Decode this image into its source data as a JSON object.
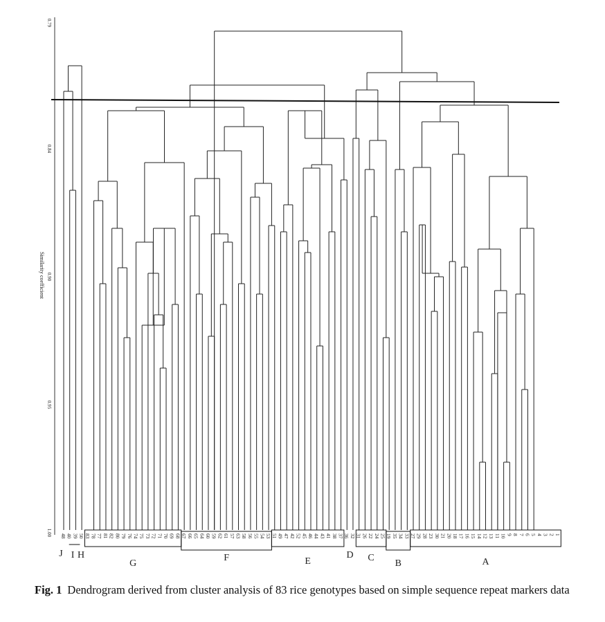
{
  "figure": {
    "label": "Fig. 1",
    "caption": "Dendrogram derived from cluster analysis of 83 rice genotypes based on simple sequence repeat markers data"
  },
  "axis": {
    "title": "Similarity coefficient",
    "ticks": [
      "0.79",
      "0.84",
      "0.90",
      "0.95",
      "1.00"
    ]
  },
  "leaves": [
    "48",
    "40",
    "39",
    "50",
    "83",
    "78",
    "77",
    "81",
    "82",
    "80",
    "79",
    "76",
    "74",
    "75",
    "73",
    "72",
    "71",
    "70",
    "69",
    "68",
    "67",
    "66",
    "65",
    "64",
    "60",
    "59",
    "62",
    "61",
    "57",
    "63",
    "58",
    "56",
    "55",
    "54",
    "53",
    "51",
    "49",
    "47",
    "42",
    "52",
    "45",
    "46",
    "44",
    "43",
    "41",
    "38",
    "37",
    "36",
    "32",
    "31",
    "26",
    "22",
    "24",
    "25",
    "19",
    "35",
    "34",
    "33",
    "27",
    "29",
    "28",
    "23",
    "30",
    "21",
    "20",
    "18",
    "17",
    "16",
    "15",
    "14",
    "12",
    "13",
    "11",
    "10",
    "9",
    "8",
    "7",
    "6",
    "5",
    "4",
    "3",
    "2",
    "1"
  ],
  "clusters": [
    {
      "name": "J",
      "leaves": [
        "48"
      ]
    },
    {
      "name": "I",
      "leaves": [
        "40",
        "39"
      ]
    },
    {
      "name": "H",
      "leaves": [
        "50"
      ]
    },
    {
      "name": "G",
      "leaves": [
        "83",
        "78",
        "77",
        "81",
        "82",
        "80",
        "79",
        "76",
        "74",
        "75",
        "73",
        "72",
        "71",
        "70",
        "69",
        "68"
      ]
    },
    {
      "name": "F",
      "leaves": [
        "67",
        "66",
        "65",
        "64",
        "60",
        "59",
        "62",
        "61",
        "57",
        "63",
        "58",
        "56",
        "55",
        "54",
        "53"
      ]
    },
    {
      "name": "E",
      "leaves": [
        "51",
        "49",
        "47",
        "42",
        "52",
        "45",
        "46",
        "44",
        "43",
        "41",
        "38",
        "37"
      ]
    },
    {
      "name": "D",
      "leaves": [
        "36",
        "32"
      ]
    },
    {
      "name": "C",
      "leaves": [
        "31",
        "26",
        "22",
        "24",
        "25"
      ]
    },
    {
      "name": "B",
      "leaves": [
        "19",
        "35",
        "34",
        "33"
      ]
    },
    {
      "name": "A",
      "leaves": [
        "27",
        "29",
        "28",
        "23",
        "30",
        "21",
        "20",
        "18",
        "17",
        "16",
        "15",
        "14",
        "12",
        "13",
        "11",
        "10",
        "9",
        "8",
        "7",
        "6",
        "5",
        "4",
        "3",
        "2",
        "1"
      ]
    }
  ]
}
